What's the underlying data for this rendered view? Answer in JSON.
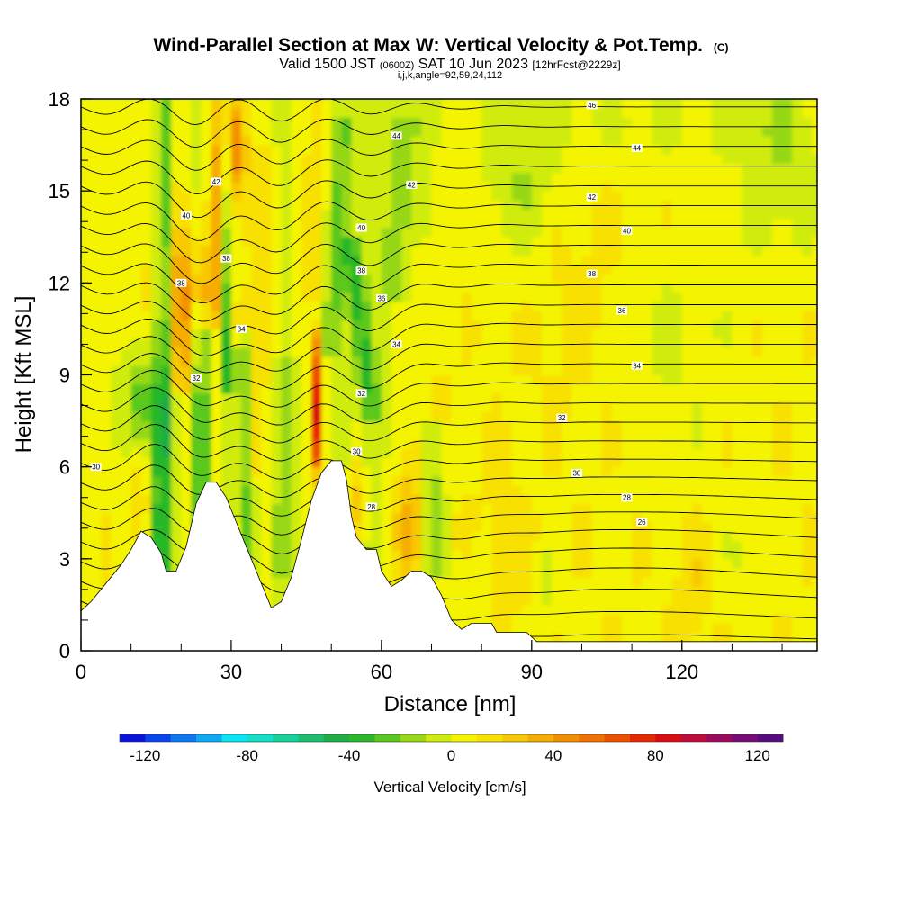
{
  "chart_data": {
    "type": "heatmap",
    "title": "Wind-Parallel Section at Max W: Vertical Velocity & Pot.Temp.",
    "title_mark": "(C)",
    "subtitle_parts": [
      "Valid 1500 JST ",
      "(0600Z)",
      " SAT 10 Jun 2023 ",
      "[12hrFcst@2229z]"
    ],
    "info_line": "i,j,k,angle=92,59,24,112",
    "xlabel": "Distance [nm]",
    "ylabel": "Height [Kft MSL]",
    "xlim": [
      0,
      147
    ],
    "ylim": [
      0,
      18
    ],
    "x_ticks": [
      0,
      30,
      60,
      90,
      120
    ],
    "x_tick_labels": [
      "0",
      "30",
      "60",
      "90",
      "120"
    ],
    "y_ticks": [
      0,
      3,
      6,
      9,
      12,
      15,
      18
    ],
    "y_tick_labels": [
      "0",
      "3",
      "6",
      "9",
      "12",
      "15",
      "18"
    ],
    "colorbar": {
      "label": "Vertical Velocity [cm/s]",
      "range": [
        -130,
        130
      ],
      "step": 10,
      "tick_values": [
        -120,
        -80,
        -40,
        0,
        40,
        80,
        120
      ],
      "tick_labels": [
        "-120",
        "-80",
        "-40",
        "0",
        "40",
        "80",
        "120"
      ],
      "colors": [
        "#0a12e0",
        "#0844f0",
        "#0a78f2",
        "#0aaaf5",
        "#08e6f5",
        "#10e0c8",
        "#14d29a",
        "#1ac070",
        "#1eae44",
        "#28b828",
        "#5ac81e",
        "#96d814",
        "#d0ec0a",
        "#f4f400",
        "#f8e000",
        "#f8c800",
        "#f6ac00",
        "#f49000",
        "#f27200",
        "#ee5000",
        "#e82800",
        "#dc0c10",
        "#c00a3c",
        "#9c0a5c",
        "#7a0a78",
        "#5a0a80"
      ]
    },
    "potential_temperature_contour_labels": [
      {
        "value": "46",
        "x": 102,
        "y": 17.8
      },
      {
        "value": "44",
        "x": 63,
        "y": 16.8
      },
      {
        "value": "44",
        "x": 111,
        "y": 16.4
      },
      {
        "value": "42",
        "x": 27,
        "y": 15.3
      },
      {
        "value": "42",
        "x": 66,
        "y": 15.2
      },
      {
        "value": "42",
        "x": 102,
        "y": 14.8
      },
      {
        "value": "40",
        "x": 21,
        "y": 14.2
      },
      {
        "value": "40",
        "x": 56,
        "y": 13.8
      },
      {
        "value": "40",
        "x": 109,
        "y": 13.7
      },
      {
        "value": "38",
        "x": 29,
        "y": 12.8
      },
      {
        "value": "38",
        "x": 20,
        "y": 12.0
      },
      {
        "value": "38",
        "x": 56,
        "y": 12.4
      },
      {
        "value": "38",
        "x": 102,
        "y": 12.3
      },
      {
        "value": "36",
        "x": 60,
        "y": 11.5
      },
      {
        "value": "36",
        "x": 108,
        "y": 11.1
      },
      {
        "value": "34",
        "x": 32,
        "y": 10.5
      },
      {
        "value": "34",
        "x": 63,
        "y": 10.0
      },
      {
        "value": "34",
        "x": 111,
        "y": 9.3
      },
      {
        "value": "32",
        "x": 23,
        "y": 8.9
      },
      {
        "value": "32",
        "x": 56,
        "y": 8.4
      },
      {
        "value": "32",
        "x": 96,
        "y": 7.6
      },
      {
        "value": "30",
        "x": 3,
        "y": 6.0
      },
      {
        "value": "30",
        "x": 55,
        "y": 6.5
      },
      {
        "value": "30",
        "x": 99,
        "y": 5.8
      },
      {
        "value": "28",
        "x": 58,
        "y": 4.7
      },
      {
        "value": "28",
        "x": 109,
        "y": 5.0
      },
      {
        "value": "26",
        "x": 112,
        "y": 4.2
      }
    ],
    "terrain_profile": [
      [
        0,
        1.3
      ],
      [
        2,
        1.6
      ],
      [
        4,
        2.0
      ],
      [
        6,
        2.4
      ],
      [
        8,
        2.8
      ],
      [
        10,
        3.3
      ],
      [
        12,
        3.9
      ],
      [
        14,
        3.7
      ],
      [
        16,
        3.2
      ],
      [
        17,
        2.6
      ],
      [
        19,
        2.6
      ],
      [
        21,
        3.4
      ],
      [
        23,
        4.8
      ],
      [
        25,
        5.5
      ],
      [
        27,
        5.5
      ],
      [
        29,
        5.0
      ],
      [
        31,
        4.2
      ],
      [
        33,
        3.4
      ],
      [
        35,
        2.6
      ],
      [
        37,
        1.8
      ],
      [
        38,
        1.4
      ],
      [
        40,
        1.6
      ],
      [
        42,
        2.4
      ],
      [
        44,
        3.6
      ],
      [
        46,
        4.9
      ],
      [
        48,
        5.8
      ],
      [
        50,
        6.2
      ],
      [
        52,
        6.2
      ],
      [
        53,
        5.6
      ],
      [
        54,
        4.4
      ],
      [
        55,
        3.7
      ],
      [
        57,
        3.3
      ],
      [
        59,
        3.3
      ],
      [
        60,
        2.6
      ],
      [
        62,
        2.1
      ],
      [
        64,
        2.3
      ],
      [
        66,
        2.6
      ],
      [
        68,
        2.6
      ],
      [
        70,
        2.4
      ],
      [
        72,
        1.8
      ],
      [
        74,
        1.0
      ],
      [
        76,
        0.7
      ],
      [
        78,
        0.9
      ],
      [
        82,
        0.9
      ],
      [
        83,
        0.6
      ],
      [
        89,
        0.6
      ],
      [
        91,
        0.3
      ],
      [
        147,
        0.3
      ]
    ]
  }
}
